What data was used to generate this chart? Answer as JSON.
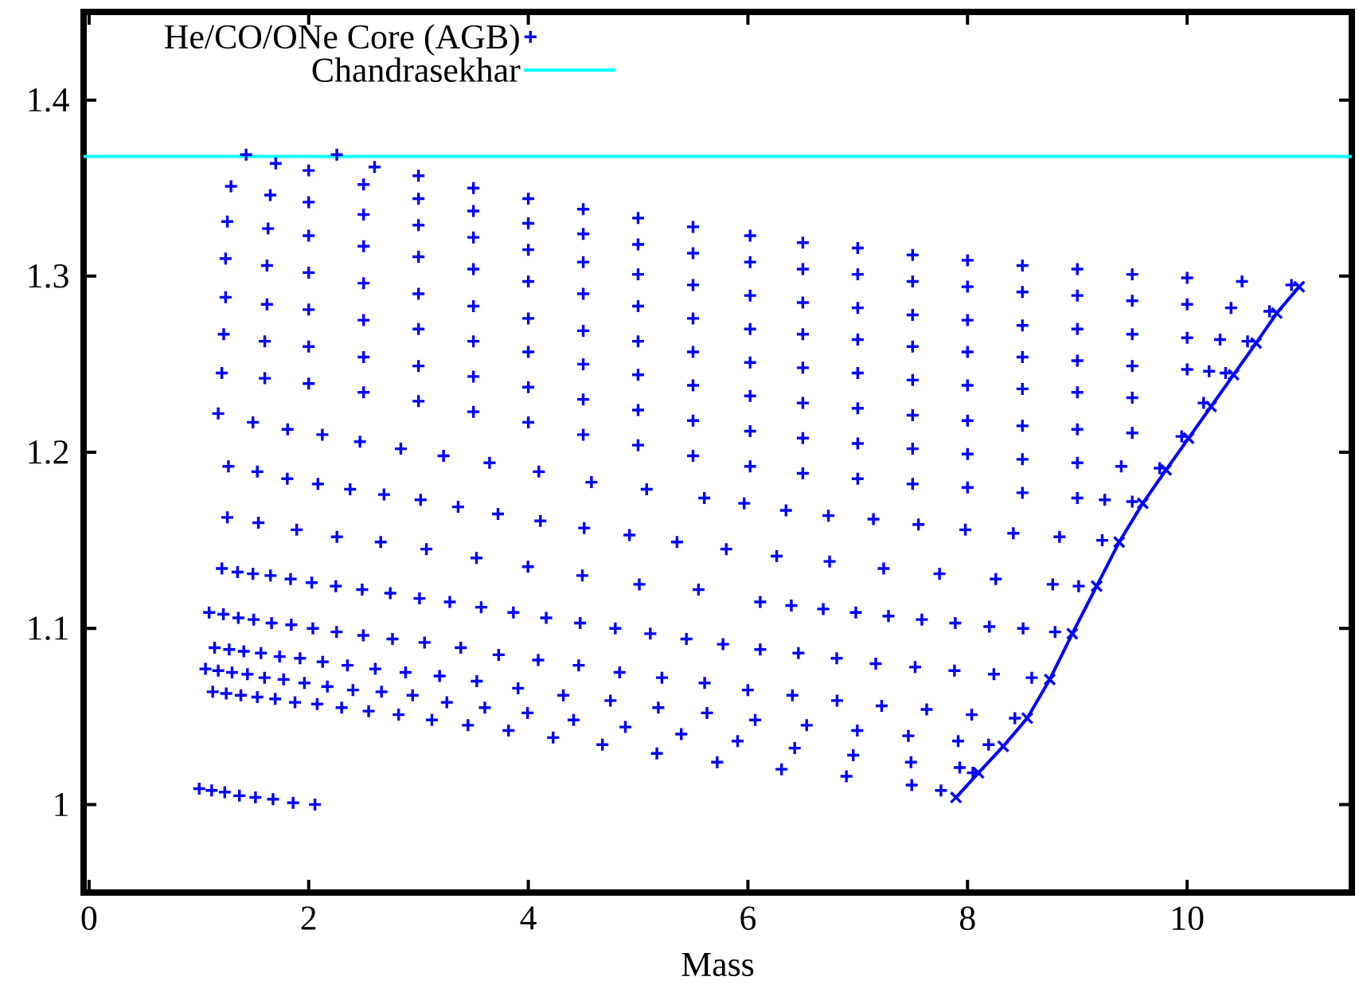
{
  "chart_data": {
    "type": "scatter",
    "xlabel": "Mass",
    "xlim": [
      -0.05,
      11.5
    ],
    "ylim": [
      0.95,
      1.45
    ],
    "xticks": [
      0,
      2,
      4,
      6,
      8,
      10
    ],
    "yticks": [
      1,
      1.1,
      1.2,
      1.3,
      1.4
    ],
    "legend": "top left",
    "series": [
      {
        "name": "He/CO/ONe Core (AGB)",
        "marker": "cross",
        "color": "#0000ff",
        "x": [
          2.256,
          3.0,
          4.0,
          5.0,
          6.02,
          7.0,
          8.0,
          9.0,
          10.0,
          10.95,
          1.43,
          2.0,
          3.0,
          4.0,
          5.0,
          6.02,
          7.0,
          8.0,
          9.0,
          10.0,
          10.75,
          1.292,
          2.0,
          3.0,
          4.0,
          5.0,
          6.02,
          7.0,
          8.0,
          9.0,
          10.0,
          10.55,
          1.259,
          2.0,
          3.0,
          4.0,
          5.0,
          6.02,
          7.0,
          8.0,
          9.0,
          10.0,
          10.35,
          1.243,
          2.0,
          3.0,
          4.0,
          5.0,
          6.02,
          7.0,
          8.0,
          9.0,
          10.15,
          1.243,
          2.0,
          3.0,
          4.0,
          5.0,
          6.02,
          7.0,
          8.0,
          9.0,
          9.95,
          1.226,
          2.0,
          3.0,
          4.0,
          5.0,
          6.02,
          7.0,
          8.0,
          9.0,
          9.75,
          1.209,
          2.0,
          3.0,
          4.0,
          5.0,
          6.02,
          7.0,
          8.0,
          9.0,
          9.5,
          1.176,
          1.492,
          1.808,
          2.124,
          2.467,
          2.839,
          3.228,
          3.647,
          4.096,
          4.575,
          5.078,
          5.603,
          5.966,
          6.347,
          6.733,
          7.143,
          7.553,
          7.98,
          8.417,
          8.838,
          9.227,
          1.269,
          1.532,
          1.805,
          2.084,
          2.377,
          2.686,
          3.019,
          3.361,
          3.724,
          4.11,
          4.509,
          4.921,
          5.354,
          5.803,
          6.262,
          6.744,
          7.236,
          7.745,
          8.257,
          8.776,
          9.012,
          1.259,
          1.542,
          1.891,
          2.257,
          2.656,
          3.072,
          3.528,
          3.997,
          4.492,
          5.011,
          5.55,
          6.112,
          6.395,
          6.686,
          6.983,
          7.28,
          7.584,
          7.888,
          8.199,
          8.506,
          8.797,
          1.209,
          1.352,
          1.492,
          1.652,
          1.835,
          2.028,
          2.247,
          2.487,
          2.743,
          3.009,
          3.285,
          3.571,
          3.864,
          4.163,
          4.472,
          4.792,
          5.111,
          5.44,
          5.773,
          6.112,
          6.46,
          6.809,
          7.164,
          7.523,
          7.881,
          8.24,
          8.585,
          1.093,
          1.223,
          1.359,
          1.499,
          1.662,
          1.841,
          2.038,
          2.254,
          2.497,
          2.763,
          3.055,
          3.385,
          3.73,
          4.09,
          4.459,
          4.831,
          5.217,
          5.606,
          5.999,
          6.405,
          6.812,
          7.218,
          7.628,
          8.038,
          8.431,
          1.143,
          1.276,
          1.409,
          1.565,
          1.735,
          1.921,
          2.127,
          2.353,
          2.606,
          2.882,
          3.192,
          3.531,
          3.907,
          4.319,
          4.748,
          5.184,
          5.627,
          6.066,
          6.535,
          6.996,
          7.461,
          7.915,
          8.192,
          1.06,
          1.176,
          1.302,
          1.442,
          1.598,
          1.771,
          1.961,
          2.17,
          2.403,
          2.663,
          2.946,
          3.258,
          3.604,
          3.993,
          4.412,
          4.884,
          5.393,
          5.906,
          6.426,
          6.959,
          7.485,
          7.929,
          8.049,
          1.126,
          1.249,
          1.382,
          1.532,
          1.695,
          1.875,
          2.077,
          2.3,
          2.546,
          2.819,
          3.122,
          3.451,
          3.82,
          4.226,
          4.675,
          5.171,
          5.72,
          6.306,
          6.897,
          7.492,
          7.758,
          1.003,
          1.116,
          1.236,
          1.369,
          1.515,
          1.675,
          1.858,
          2.057,
          2.6,
          3.5,
          4.5,
          5.5,
          6.5,
          7.5,
          8.5,
          9.5,
          10.5,
          1.7,
          2.5,
          3.5,
          4.5,
          5.5,
          6.5,
          7.5,
          8.5,
          9.5,
          10.4,
          1.65,
          2.5,
          3.5,
          4.5,
          5.5,
          6.5,
          7.5,
          8.5,
          9.5,
          10.3,
          1.63,
          2.5,
          3.5,
          4.5,
          5.5,
          6.5,
          7.5,
          8.5,
          9.5,
          10.2,
          1.62,
          2.5,
          3.5,
          4.5,
          5.5,
          6.5,
          7.5,
          8.5,
          9.5,
          1.62,
          2.5,
          3.5,
          4.5,
          5.5,
          6.5,
          7.5,
          8.5,
          9.5,
          1.6,
          2.5,
          3.5,
          4.5,
          5.5,
          6.5,
          7.5,
          8.5,
          9.4,
          1.6,
          2.5,
          3.5,
          4.5,
          5.5,
          6.5,
          7.5,
          8.5,
          9.25
        ],
        "values": [
          1.369,
          1.357,
          1.344,
          1.333,
          1.323,
          1.316,
          1.309,
          1.304,
          1.299,
          1.295,
          1.369,
          1.36,
          1.344,
          1.33,
          1.318,
          1.308,
          1.301,
          1.294,
          1.289,
          1.284,
          1.28,
          1.351,
          1.342,
          1.329,
          1.315,
          1.301,
          1.289,
          1.282,
          1.275,
          1.27,
          1.265,
          1.263,
          1.331,
          1.323,
          1.311,
          1.297,
          1.283,
          1.27,
          1.264,
          1.257,
          1.252,
          1.247,
          1.245,
          1.31,
          1.302,
          1.29,
          1.276,
          1.263,
          1.251,
          1.245,
          1.238,
          1.234,
          1.228,
          1.288,
          1.281,
          1.27,
          1.257,
          1.244,
          1.232,
          1.225,
          1.218,
          1.213,
          1.209,
          1.267,
          1.26,
          1.249,
          1.237,
          1.224,
          1.212,
          1.205,
          1.199,
          1.194,
          1.191,
          1.245,
          1.239,
          1.229,
          1.217,
          1.204,
          1.192,
          1.185,
          1.18,
          1.174,
          1.172,
          1.222,
          1.217,
          1.213,
          1.21,
          1.206,
          1.202,
          1.198,
          1.194,
          1.189,
          1.183,
          1.179,
          1.174,
          1.171,
          1.167,
          1.164,
          1.162,
          1.159,
          1.156,
          1.154,
          1.152,
          1.15,
          1.192,
          1.189,
          1.185,
          1.182,
          1.179,
          1.176,
          1.173,
          1.169,
          1.165,
          1.161,
          1.157,
          1.153,
          1.149,
          1.145,
          1.141,
          1.138,
          1.134,
          1.131,
          1.128,
          1.125,
          1.124,
          1.163,
          1.16,
          1.156,
          1.152,
          1.149,
          1.145,
          1.14,
          1.135,
          1.13,
          1.125,
          1.122,
          1.115,
          1.113,
          1.111,
          1.109,
          1.107,
          1.105,
          1.103,
          1.101,
          1.1,
          1.098,
          1.134,
          1.132,
          1.131,
          1.13,
          1.128,
          1.126,
          1.124,
          1.122,
          1.12,
          1.117,
          1.115,
          1.112,
          1.109,
          1.106,
          1.103,
          1.1,
          1.097,
          1.094,
          1.091,
          1.088,
          1.086,
          1.083,
          1.08,
          1.078,
          1.076,
          1.074,
          1.072,
          1.109,
          1.108,
          1.106,
          1.105,
          1.103,
          1.102,
          1.1,
          1.098,
          1.096,
          1.094,
          1.092,
          1.089,
          1.085,
          1.082,
          1.079,
          1.075,
          1.072,
          1.069,
          1.065,
          1.062,
          1.059,
          1.056,
          1.054,
          1.051,
          1.049,
          1.089,
          1.088,
          1.087,
          1.086,
          1.084,
          1.083,
          1.081,
          1.079,
          1.077,
          1.075,
          1.073,
          1.07,
          1.066,
          1.062,
          1.059,
          1.055,
          1.052,
          1.048,
          1.045,
          1.042,
          1.039,
          1.036,
          1.034,
          1.077,
          1.076,
          1.075,
          1.074,
          1.072,
          1.071,
          1.069,
          1.067,
          1.065,
          1.064,
          1.062,
          1.058,
          1.055,
          1.052,
          1.048,
          1.044,
          1.04,
          1.036,
          1.032,
          1.028,
          1.024,
          1.021,
          1.018,
          1.064,
          1.063,
          1.062,
          1.061,
          1.06,
          1.058,
          1.057,
          1.055,
          1.053,
          1.051,
          1.048,
          1.045,
          1.042,
          1.038,
          1.034,
          1.029,
          1.024,
          1.02,
          1.016,
          1.011,
          1.008,
          1.009,
          1.008,
          1.007,
          1.005,
          1.004,
          1.003,
          1.001,
          1.0,
          1.362,
          1.35,
          1.338,
          1.328,
          1.319,
          1.312,
          1.306,
          1.301,
          1.297,
          1.364,
          1.352,
          1.337,
          1.324,
          1.313,
          1.304,
          1.297,
          1.291,
          1.286,
          1.282,
          1.346,
          1.335,
          1.322,
          1.308,
          1.295,
          1.285,
          1.278,
          1.272,
          1.267,
          1.264,
          1.327,
          1.317,
          1.304,
          1.29,
          1.276,
          1.267,
          1.26,
          1.254,
          1.249,
          1.246,
          1.306,
          1.296,
          1.283,
          1.269,
          1.257,
          1.248,
          1.241,
          1.236,
          1.231,
          1.284,
          1.275,
          1.263,
          1.25,
          1.238,
          1.228,
          1.221,
          1.215,
          1.211,
          1.263,
          1.254,
          1.243,
          1.23,
          1.218,
          1.208,
          1.202,
          1.196,
          1.192,
          1.242,
          1.234,
          1.223,
          1.21,
          1.198,
          1.188,
          1.182,
          1.177,
          1.173
        ]
      },
      {
        "type": "line",
        "marker": "cross",
        "color": "#0000ff",
        "x": [
          7.895,
          8.1,
          8.325,
          8.544,
          8.749,
          8.954,
          9.176,
          9.381,
          9.596,
          9.808,
          10.013,
          10.218,
          10.423,
          10.628,
          10.816,
          11.02
        ],
        "values": [
          1.004,
          1.018,
          1.033,
          1.049,
          1.071,
          1.097,
          1.124,
          1.149,
          1.171,
          1.19,
          1.208,
          1.226,
          1.244,
          1.262,
          1.279,
          1.294
        ]
      }
    ],
    "ref_lines": [
      {
        "axis": "y",
        "value": 1.368,
        "label": "Chandrasekhar",
        "color": "#00ffff"
      }
    ]
  }
}
